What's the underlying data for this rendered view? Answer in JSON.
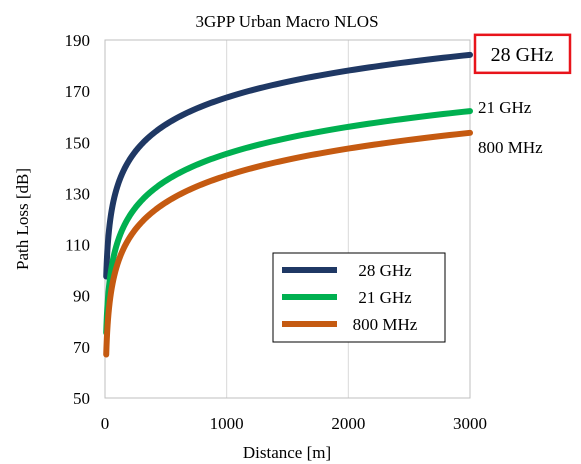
{
  "chart_data": {
    "type": "line",
    "title": "3GPP Urban Macro NLOS",
    "xlabel": "Distance [m]",
    "ylabel": "Path Loss [dB]",
    "xlim": [
      0,
      3000
    ],
    "ylim": [
      50,
      190
    ],
    "x_ticks": [
      "0",
      "1000",
      "2000",
      "3000"
    ],
    "y_ticks": [
      "50",
      "70",
      "90",
      "110",
      "130",
      "150",
      "170",
      "190"
    ],
    "grid": "vertical",
    "legend_placement": "center-right",
    "series": [
      {
        "name": "28 GHz",
        "color": "#1f3864",
        "end_label": "28 GHz",
        "end_label_boxed": true,
        "box_color": "#e8141b",
        "points": [
          [
            10,
            97.5
          ],
          [
            20,
            108
          ],
          [
            40,
            118.5
          ],
          [
            60,
            124.7
          ],
          [
            100,
            132.4
          ],
          [
            150,
            138.6
          ],
          [
            200,
            143
          ],
          [
            300,
            149.2
          ],
          [
            400,
            153.5
          ],
          [
            500,
            156.9
          ],
          [
            700,
            162
          ],
          [
            1000,
            167.5
          ],
          [
            1500,
            173.7
          ],
          [
            2000,
            178
          ],
          [
            2500,
            181.4
          ],
          [
            3000,
            184.2
          ]
        ]
      },
      {
        "name": "21 GHz",
        "color": "#00b050",
        "end_label": "21 GHz",
        "end_label_boxed": false,
        "points": [
          [
            10,
            75.5
          ],
          [
            20,
            86
          ],
          [
            40,
            96.5
          ],
          [
            60,
            102.7
          ],
          [
            100,
            110.4
          ],
          [
            150,
            116.6
          ],
          [
            200,
            121
          ],
          [
            300,
            127.2
          ],
          [
            400,
            131.5
          ],
          [
            500,
            134.9
          ],
          [
            700,
            140
          ],
          [
            1000,
            145.5
          ],
          [
            1500,
            151.7
          ],
          [
            2000,
            156
          ],
          [
            2500,
            159.4
          ],
          [
            3000,
            162.2
          ]
        ]
      },
      {
        "name": "800 MHz",
        "color": "#c55a11",
        "end_label": "800 MHz",
        "end_label_boxed": false,
        "points": [
          [
            10,
            67
          ],
          [
            20,
            77.5
          ],
          [
            40,
            88
          ],
          [
            60,
            94.2
          ],
          [
            100,
            101.9
          ],
          [
            150,
            108.1
          ],
          [
            200,
            112.5
          ],
          [
            300,
            118.7
          ],
          [
            400,
            123
          ],
          [
            500,
            126.4
          ],
          [
            700,
            131.5
          ],
          [
            1000,
            137
          ],
          [
            1500,
            143.2
          ],
          [
            2000,
            147.5
          ],
          [
            2500,
            150.9
          ],
          [
            3000,
            153.7
          ]
        ]
      }
    ]
  }
}
